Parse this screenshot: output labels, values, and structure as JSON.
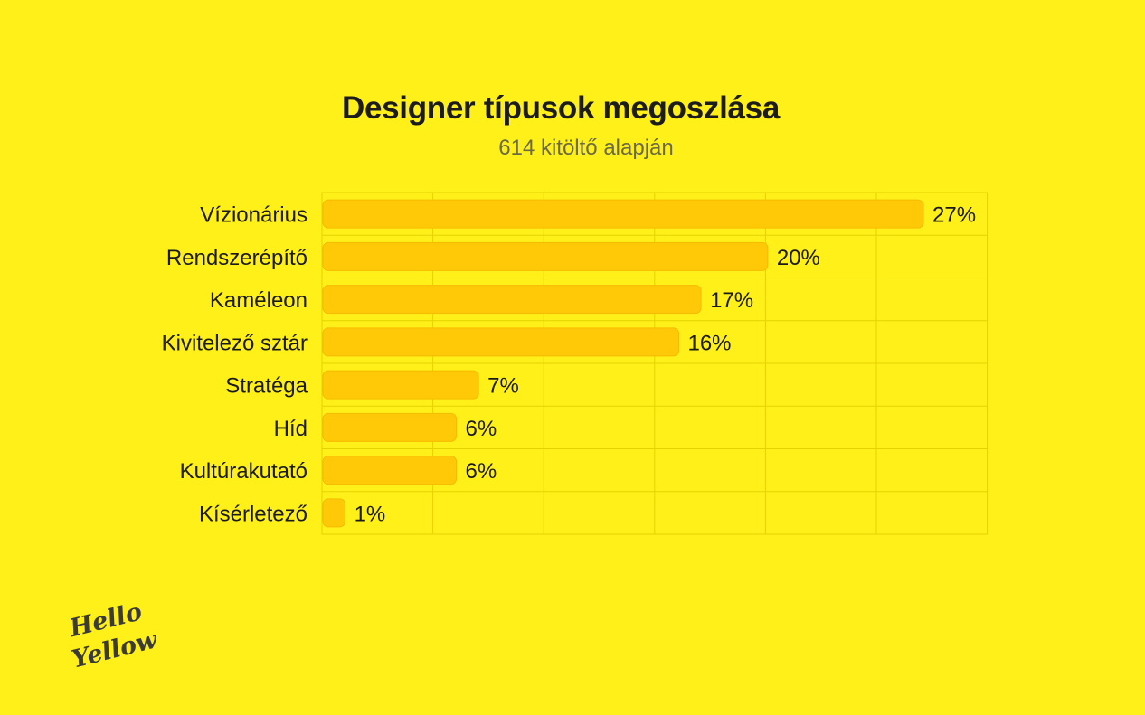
{
  "title": "Designer típusok megoszlása",
  "subtitle": "614 kitöltő alapján",
  "logo_text": [
    "Hello",
    "Yellow"
  ],
  "colors": {
    "background": "#FFF01A",
    "bar": "#FFC907",
    "grid": "#E6D200",
    "text": "#1a1a1a"
  },
  "chart_data": {
    "type": "bar",
    "orientation": "horizontal",
    "title": "Designer típusok megoszlása",
    "subtitle": "614 kitöltő alapján",
    "categories": [
      "Vízionárius",
      "Rendszerépítő",
      "Kaméleon",
      "Kivitelező sztár",
      "Stratéga",
      "Híd",
      "Kultúrakutató",
      "Kísérletező"
    ],
    "values": [
      27,
      20,
      17,
      16,
      7,
      6,
      6,
      1
    ],
    "value_labels": [
      "27%",
      "20%",
      "17%",
      "16%",
      "7%",
      "6%",
      "6%",
      "1%"
    ],
    "unit": "%",
    "xlim": [
      0,
      30
    ],
    "grid": true
  }
}
